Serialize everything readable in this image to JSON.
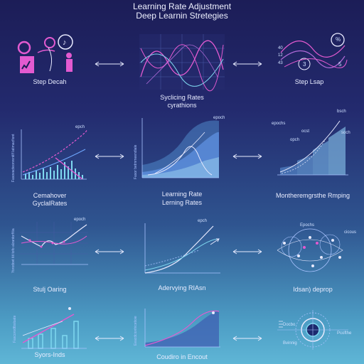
{
  "title": {
    "line1": "Learning Rate Adjustment",
    "line2": "Deep Learnin Stretegies"
  },
  "panels": [
    {
      "caption": "Step Decah"
    },
    {
      "caption1": "Syclicing Rates",
      "caption2": "cyrathions"
    },
    {
      "caption": "Step Lsap",
      "labels": [
        "%",
        "40",
        "12",
        "43",
        "3",
        "5"
      ]
    },
    {
      "caption1": "Cemahover",
      "caption2": "GyclalRates",
      "annotation": "epch",
      "ylabel": "Fasovacteonrentilf latimacfiont"
    },
    {
      "caption1": "Learning Rate",
      "caption2": "Lerning Rates",
      "annotation": "epoch",
      "ylabel": "Fasor betmmeendiale"
    },
    {
      "caption": "Montheremgrsthe Rmping",
      "annotations": [
        "epochs",
        "bsch",
        "soch",
        "ocst",
        "opch"
      ]
    },
    {
      "caption": "Stulj Oaring",
      "annotation": "epoch",
      "ylabel": "Yorodovt tiit tofo alzantorfitia"
    },
    {
      "caption": "Adervying RIAsn",
      "annotation": "epch"
    },
    {
      "caption": "Idsan) deprop",
      "annotations": [
        "Epochs",
        "cicous"
      ]
    },
    {
      "caption": "Syors-Inds",
      "ylabel": "Fascorodtbsloate"
    },
    {
      "caption": "Coudiro in Encout",
      "ylabel": "Eeacdcionhicetioie"
    },
    {
      "caption": "",
      "labels": [
        "Docbo",
        "Bvinnig",
        "Pcofthe"
      ]
    }
  ],
  "colors": {
    "background_top": "#1c1d57",
    "background_bottom": "#5fb6d6",
    "accent_pink": "#e35ad0",
    "accent_cyan": "#7fd8f0",
    "accent_blue": "#6fa8ff"
  }
}
